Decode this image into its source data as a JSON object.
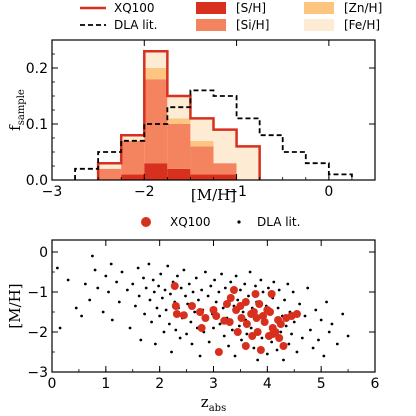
{
  "chart_data": [
    {
      "type": "bar",
      "xlabel": "[M/H]",
      "ylabel": "f",
      "ylabel_sub": "sample",
      "xlim": [
        -3.0,
        0.5
      ],
      "ylim": [
        0.0,
        0.25
      ],
      "xticks": [
        -3,
        -2,
        -1,
        0
      ],
      "xtick_labels": [
        "−3",
        "−2",
        "−1",
        "0"
      ],
      "yticks": [
        0.0,
        0.1,
        0.2
      ],
      "ytick_labels": [
        "0.0",
        "0.1",
        "0.2"
      ],
      "legend_position": "top",
      "legend": [
        {
          "label": "XQ100",
          "style": "line",
          "color": "#d7301f"
        },
        {
          "label": "[S/H]",
          "style": "patch",
          "color": "#d7301f"
        },
        {
          "label": "[Zn/H]",
          "style": "patch",
          "color": "#fdc57f"
        },
        {
          "label": "DLA lit.",
          "style": "dashed",
          "color": "#000000"
        },
        {
          "label": "[Si/H]",
          "style": "patch",
          "color": "#f4845f"
        },
        {
          "label": "[Fe/H]",
          "style": "patch",
          "color": "#fdebd3"
        }
      ],
      "xq100_hist": {
        "edges": [
          -2.5,
          -2.25,
          -2.0,
          -1.75,
          -1.5,
          -1.25,
          -1.0,
          -0.75
        ],
        "values": [
          0.03,
          0.08,
          0.23,
          0.15,
          0.11,
          0.09,
          0.06
        ]
      },
      "stack_colors": {
        "S": "#d7301f",
        "Si": "#f4845f",
        "Zn": "#fdc57f",
        "Fe": "#fdebd3"
      },
      "stacks": [
        {
          "S": 0.0,
          "Si": 0.02,
          "Zn": 0.0,
          "Fe": 0.01
        },
        {
          "S": 0.01,
          "Si": 0.06,
          "Zn": 0.0,
          "Fe": 0.01
        },
        {
          "S": 0.03,
          "Si": 0.15,
          "Zn": 0.02,
          "Fe": 0.03
        },
        {
          "S": 0.02,
          "Si": 0.08,
          "Zn": 0.01,
          "Fe": 0.04
        },
        {
          "S": 0.01,
          "Si": 0.05,
          "Zn": 0.01,
          "Fe": 0.04
        },
        {
          "S": 0.01,
          "Si": 0.02,
          "Zn": 0.0,
          "Fe": 0.06
        },
        {
          "S": 0.0,
          "Si": 0.0,
          "Zn": 0.0,
          "Fe": 0.06
        }
      ],
      "dla_hist": {
        "edges": [
          -2.75,
          -2.5,
          -2.25,
          -2.0,
          -1.75,
          -1.5,
          -1.25,
          -1.0,
          -0.75,
          -0.5,
          -0.25,
          0.0,
          0.25
        ],
        "values": [
          0.02,
          0.05,
          0.07,
          0.1,
          0.13,
          0.16,
          0.15,
          0.11,
          0.08,
          0.05,
          0.03,
          0.01
        ]
      }
    },
    {
      "type": "scatter",
      "xlabel": "z",
      "xlabel_sub": "abs",
      "ylabel": "[M/H]",
      "xlim": [
        0,
        6
      ],
      "ylim": [
        -3.0,
        0.3
      ],
      "xticks": [
        0,
        1,
        2,
        3,
        4,
        5,
        6
      ],
      "yticks": [
        -3,
        -2,
        -1,
        0
      ],
      "ytick_labels": [
        "−3",
        "−2",
        "−1",
        "0"
      ],
      "legend_position": "top",
      "legend": [
        {
          "label": "XQ100",
          "marker": "circle-large",
          "color": "#d7301f"
        },
        {
          "label": "DLA lit.",
          "marker": "dot",
          "color": "#000000"
        }
      ],
      "series": [
        {
          "name": "XQ100",
          "color": "#d7301f",
          "points": [
            [
              2.28,
              -0.85
            ],
            [
              2.3,
              -1.35
            ],
            [
              2.32,
              -1.55
            ],
            [
              2.45,
              -1.58
            ],
            [
              2.6,
              -1.35
            ],
            [
              2.75,
              -1.5
            ],
            [
              2.78,
              -1.9
            ],
            [
              2.85,
              -1.65
            ],
            [
              3.0,
              -1.45
            ],
            [
              3.05,
              -1.6
            ],
            [
              3.1,
              -2.5
            ],
            [
              3.2,
              -1.72
            ],
            [
              3.25,
              -1.3
            ],
            [
              3.3,
              -1.75
            ],
            [
              3.32,
              -1.15
            ],
            [
              3.38,
              -0.95
            ],
            [
              3.42,
              -1.45
            ],
            [
              3.45,
              -2.0
            ],
            [
              3.5,
              -1.35
            ],
            [
              3.52,
              -1.65
            ],
            [
              3.6,
              -1.25
            ],
            [
              3.62,
              -1.8
            ],
            [
              3.7,
              -1.55
            ],
            [
              3.72,
              -2.1
            ],
            [
              3.75,
              -1.5
            ],
            [
              3.78,
              -1.05
            ],
            [
              3.8,
              -1.65
            ],
            [
              3.82,
              -2.0
            ],
            [
              3.85,
              -1.3
            ],
            [
              3.88,
              -2.45
            ],
            [
              3.92,
              -1.6
            ],
            [
              3.95,
              -1.75
            ],
            [
              4.0,
              -1.45
            ],
            [
              4.03,
              -2.1
            ],
            [
              4.05,
              -1.5
            ],
            [
              4.08,
              -1.05
            ],
            [
              4.1,
              -1.9
            ],
            [
              4.15,
              -2.0
            ],
            [
              4.2,
              -1.7
            ],
            [
              4.22,
              -2.15
            ],
            [
              4.25,
              -1.8
            ],
            [
              4.3,
              -2.35
            ],
            [
              4.35,
              -1.65
            ],
            [
              4.45,
              -1.6
            ],
            [
              4.55,
              -1.55
            ],
            [
              4.1,
              -2.05
            ],
            [
              3.6,
              -2.35
            ]
          ]
        },
        {
          "name": "DLA lit.",
          "color": "#000000",
          "points": [
            [
              0.1,
              -0.4
            ],
            [
              0.15,
              -1.9
            ],
            [
              0.3,
              -0.7
            ],
            [
              0.45,
              -1.4
            ],
            [
              0.55,
              -1.6
            ],
            [
              0.62,
              -0.8
            ],
            [
              0.7,
              -1.2
            ],
            [
              0.75,
              -0.1
            ],
            [
              0.8,
              -0.45
            ],
            [
              0.85,
              -0.9
            ],
            [
              0.95,
              -1.5
            ],
            [
              1.0,
              -0.6
            ],
            [
              1.05,
              -1.0
            ],
            [
              1.1,
              -0.3
            ],
            [
              1.12,
              -1.7
            ],
            [
              1.2,
              -0.75
            ],
            [
              1.25,
              -1.25
            ],
            [
              1.3,
              -0.5
            ],
            [
              1.4,
              -0.95
            ],
            [
              1.45,
              -1.9
            ],
            [
              1.5,
              -0.8
            ],
            [
              1.55,
              -1.35
            ],
            [
              1.6,
              -0.4
            ],
            [
              1.62,
              -1.1
            ],
            [
              1.65,
              -2.2
            ],
            [
              1.7,
              -0.65
            ],
            [
              1.72,
              -1.55
            ],
            [
              1.75,
              -0.9
            ],
            [
              1.8,
              -0.3
            ],
            [
              1.82,
              -1.2
            ],
            [
              1.85,
              -1.75
            ],
            [
              1.88,
              -0.7
            ],
            [
              1.9,
              -1.0
            ],
            [
              1.92,
              -2.3
            ],
            [
              1.95,
              -1.4
            ],
            [
              1.98,
              -0.85
            ],
            [
              2.0,
              -1.6
            ],
            [
              2.02,
              -0.55
            ],
            [
              2.05,
              -1.15
            ],
            [
              2.08,
              -2.0
            ],
            [
              2.1,
              -0.95
            ],
            [
              2.12,
              -1.45
            ],
            [
              2.15,
              -0.35
            ],
            [
              2.18,
              -1.8
            ],
            [
              2.2,
              -1.05
            ],
            [
              2.22,
              -2.5
            ],
            [
              2.25,
              -0.75
            ],
            [
              2.28,
              -1.25
            ],
            [
              2.3,
              -1.95
            ],
            [
              2.33,
              -0.6
            ],
            [
              2.35,
              -1.4
            ],
            [
              2.38,
              -2.15
            ],
            [
              2.4,
              -0.9
            ],
            [
              2.42,
              -1.65
            ],
            [
              2.45,
              -0.45
            ],
            [
              2.48,
              -1.1
            ],
            [
              2.5,
              -2.05
            ],
            [
              2.52,
              -1.3
            ],
            [
              2.55,
              -0.8
            ],
            [
              2.58,
              -1.75
            ],
            [
              2.6,
              -2.3
            ],
            [
              2.62,
              -1.0
            ],
            [
              2.65,
              -1.5
            ],
            [
              2.68,
              -0.65
            ],
            [
              2.7,
              -1.9
            ],
            [
              2.72,
              -1.2
            ],
            [
              2.75,
              -2.6
            ],
            [
              2.78,
              -0.95
            ],
            [
              2.8,
              -1.45
            ],
            [
              2.82,
              -2.0
            ],
            [
              2.85,
              -0.5
            ],
            [
              2.88,
              -1.7
            ],
            [
              2.9,
              -1.1
            ],
            [
              2.92,
              -2.25
            ],
            [
              2.95,
              -0.85
            ],
            [
              2.98,
              -1.55
            ],
            [
              3.0,
              -1.9
            ],
            [
              3.02,
              -0.7
            ],
            [
              3.05,
              -1.25
            ],
            [
              3.08,
              -2.45
            ],
            [
              3.1,
              -1.0
            ],
            [
              3.12,
              -1.8
            ],
            [
              3.15,
              -0.55
            ],
            [
              3.18,
              -1.4
            ],
            [
              3.2,
              -2.1
            ],
            [
              3.22,
              -0.9
            ],
            [
              3.25,
              -1.65
            ],
            [
              3.28,
              -2.35
            ],
            [
              3.3,
              -1.15
            ],
            [
              3.32,
              -0.75
            ],
            [
              3.35,
              -1.95
            ],
            [
              3.38,
              -1.35
            ],
            [
              3.4,
              -2.6
            ],
            [
              3.42,
              -0.6
            ],
            [
              3.45,
              -1.2
            ],
            [
              3.48,
              -1.85
            ],
            [
              3.5,
              -0.95
            ],
            [
              3.52,
              -2.2
            ],
            [
              3.55,
              -1.5
            ],
            [
              3.58,
              -0.8
            ],
            [
              3.6,
              -1.7
            ],
            [
              3.62,
              -2.05
            ],
            [
              3.65,
              -1.1
            ],
            [
              3.68,
              -0.5
            ],
            [
              3.7,
              -1.9
            ],
            [
              3.72,
              -1.4
            ],
            [
              3.75,
              -2.4
            ],
            [
              3.78,
              -0.85
            ],
            [
              3.8,
              -1.25
            ],
            [
              3.82,
              -2.7
            ],
            [
              3.85,
              -1.6
            ],
            [
              3.88,
              -0.7
            ],
            [
              3.9,
              -2.15
            ],
            [
              3.92,
              -1.0
            ],
            [
              3.95,
              -1.8
            ],
            [
              3.98,
              -1.35
            ],
            [
              4.0,
              -2.55
            ],
            [
              4.02,
              -0.9
            ],
            [
              4.05,
              -1.55
            ],
            [
              4.08,
              -2.25
            ],
            [
              4.1,
              -1.15
            ],
            [
              4.12,
              -0.75
            ],
            [
              4.15,
              -1.95
            ],
            [
              4.18,
              -2.45
            ],
            [
              4.2,
              -1.4
            ],
            [
              4.22,
              -0.95
            ],
            [
              4.25,
              -2.0
            ],
            [
              4.28,
              -1.6
            ],
            [
              4.3,
              -2.7
            ],
            [
              4.32,
              -1.2
            ],
            [
              4.35,
              -1.85
            ],
            [
              4.38,
              -0.8
            ],
            [
              4.4,
              -2.3
            ],
            [
              4.42,
              -1.5
            ],
            [
              4.45,
              -2.05
            ],
            [
              4.48,
              -1.0
            ],
            [
              4.5,
              -1.75
            ],
            [
              4.55,
              -2.5
            ],
            [
              4.6,
              -1.3
            ],
            [
              4.65,
              -2.15
            ],
            [
              4.7,
              -1.6
            ],
            [
              4.75,
              -0.9
            ],
            [
              4.8,
              -1.95
            ],
            [
              4.85,
              -2.4
            ],
            [
              4.9,
              -1.45
            ],
            [
              4.95,
              -2.2
            ],
            [
              5.0,
              -1.7
            ],
            [
              5.05,
              -2.6
            ],
            [
              5.1,
              -1.25
            ],
            [
              5.15,
              -2.0
            ],
            [
              5.2,
              -1.8
            ],
            [
              5.3,
              -2.3
            ],
            [
              5.4,
              -1.55
            ],
            [
              5.5,
              -2.1
            ]
          ]
        }
      ]
    }
  ]
}
